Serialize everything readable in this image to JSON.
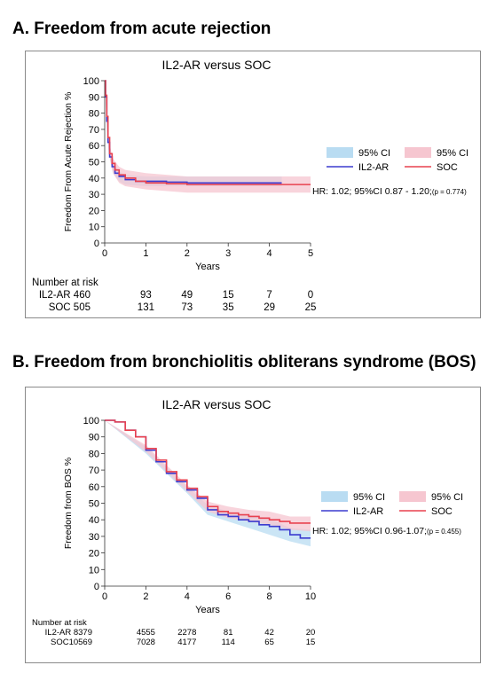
{
  "panels": {
    "a": {
      "title": "A. Freedom from acute rejection"
    },
    "b": {
      "title": "B. Freedom from bronchiolitis obliterans syndrome (BOS)"
    }
  },
  "colors": {
    "il2ar_line": "#3b3bcf",
    "soc_line": "#e8414f",
    "il2ar_ci": "#b9dcf2",
    "soc_ci": "#f6c6d0"
  },
  "chart_data": [
    {
      "type": "line",
      "title": "IL2-AR versus SOC",
      "xlabel": "Years",
      "ylabel": "Freedom From Acute Rejection %",
      "xlim": [
        0,
        5
      ],
      "ylim": [
        0,
        100
      ],
      "xticks": [
        "0",
        "1",
        "2",
        "3",
        "4",
        "5"
      ],
      "yticks": [
        "0",
        "10",
        "20",
        "30",
        "40",
        "50",
        "60",
        "70",
        "80",
        "90",
        "100"
      ],
      "grid": false,
      "legend": {
        "position": "right",
        "entries": [
          "95% CI",
          "95% CI",
          "IL2-AR",
          "SOC"
        ]
      },
      "annotation": {
        "main": "HR: 1.02; 95%CI 0.87 - 1.20;",
        "p": "(p = 0.774)"
      },
      "series": [
        {
          "name": "IL2-AR",
          "x": [
            0,
            0.02,
            0.05,
            0.08,
            0.12,
            0.18,
            0.25,
            0.35,
            0.5,
            0.75,
            1.0,
            1.5,
            2.0,
            3.0,
            4.0,
            4.3
          ],
          "y": [
            100,
            90,
            75,
            62,
            53,
            47,
            43,
            41,
            39,
            38,
            38,
            37.5,
            37,
            37,
            37,
            37
          ]
        },
        {
          "name": "SOC",
          "x": [
            0,
            0.02,
            0.05,
            0.08,
            0.12,
            0.18,
            0.25,
            0.35,
            0.5,
            0.75,
            1.0,
            1.5,
            2.0,
            3.0,
            4.0,
            5.0
          ],
          "y": [
            100,
            91,
            78,
            65,
            55,
            49,
            45,
            42,
            40,
            38,
            37,
            36.5,
            36,
            36,
            36,
            36
          ]
        }
      ],
      "ci_bands": [
        {
          "name": "95% CI",
          "x": [
            0,
            0.05,
            0.1,
            0.2,
            0.35,
            0.5,
            1.0,
            2.0,
            3.0,
            4.3
          ],
          "lower": [
            100,
            72,
            55,
            43,
            38,
            36,
            35,
            35,
            35,
            35
          ],
          "upper": [
            100,
            79,
            60,
            49,
            44,
            42,
            41,
            41,
            41,
            41
          ]
        },
        {
          "name": "95% CI",
          "x": [
            0,
            0.05,
            0.1,
            0.2,
            0.35,
            0.5,
            1.0,
            2.0,
            3.0,
            5.0
          ],
          "lower": [
            100,
            74,
            55,
            43,
            37,
            35,
            33,
            31,
            31,
            31
          ],
          "upper": [
            100,
            82,
            63,
            52,
            47,
            45,
            43,
            41,
            41,
            41
          ]
        }
      ],
      "risk_table": {
        "heading": "Number at risk",
        "rows": [
          {
            "label": "IL2-AR 460",
            "values": [
              "93",
              "49",
              "15",
              "7",
              "0"
            ]
          },
          {
            "label": "SOC 505",
            "values": [
              "131",
              "73",
              "35",
              "29",
              "25"
            ]
          }
        ]
      }
    },
    {
      "type": "line",
      "title": "IL2-AR versus SOC",
      "xlabel": "Years",
      "ylabel": "Freedom from BOS %",
      "xlim": [
        0,
        10
      ],
      "ylim": [
        0,
        100
      ],
      "xticks": [
        "0",
        "2",
        "4",
        "6",
        "8",
        "10"
      ],
      "yticks": [
        "0",
        "10",
        "20",
        "30",
        "40",
        "50",
        "60",
        "70",
        "80",
        "90",
        "100"
      ],
      "grid": false,
      "legend": {
        "position": "right",
        "entries": [
          "95% CI",
          "95% CI",
          "IL2-AR",
          "SOC"
        ]
      },
      "annotation": {
        "main": "HR: 1.02; 95%CI 0.96-1.07;",
        "p": "(p = 0.455)"
      },
      "series": [
        {
          "name": "IL2-AR",
          "x": [
            0,
            0.5,
            1,
            1.5,
            2,
            2.5,
            3,
            3.5,
            4,
            4.5,
            5,
            5.5,
            6,
            6.5,
            7,
            7.5,
            8,
            8.5,
            9,
            9.5,
            10
          ],
          "y": [
            100,
            99,
            94,
            90,
            82,
            75,
            68,
            63,
            58,
            53,
            46,
            43,
            42,
            40,
            39,
            37,
            36,
            34,
            31,
            29,
            29
          ]
        },
        {
          "name": "SOC",
          "x": [
            0,
            0.5,
            1,
            1.5,
            2,
            2.5,
            3,
            3.5,
            4,
            4.5,
            5,
            5.5,
            6,
            6.5,
            7,
            7.5,
            8,
            8.5,
            9,
            9.5,
            10
          ],
          "y": [
            100,
            99,
            94,
            90,
            83,
            76,
            69,
            64,
            59,
            54,
            48,
            45,
            44,
            43,
            42,
            41,
            40,
            39,
            38,
            38,
            38
          ]
        }
      ],
      "ci_bands": [
        {
          "name": "95% CI",
          "x": [
            0,
            2,
            4,
            5,
            6,
            7,
            8,
            9,
            10
          ],
          "lower": [
            100,
            80,
            56,
            43,
            39,
            35,
            31,
            27,
            24
          ],
          "upper": [
            100,
            84,
            60,
            49,
            45,
            43,
            41,
            35,
            34
          ]
        },
        {
          "name": "95% CI",
          "x": [
            0,
            2,
            4,
            5,
            6,
            7,
            8,
            9,
            10
          ],
          "lower": [
            100,
            81,
            57,
            45,
            41,
            39,
            37,
            34,
            33
          ],
          "upper": [
            100,
            85,
            61,
            51,
            48,
            46,
            45,
            42,
            42
          ]
        }
      ],
      "risk_table": {
        "heading": "Number at risk",
        "rows": [
          {
            "label": "IL2-AR 8379",
            "values": [
              "4555",
              "2278",
              "81",
              "42",
              "20"
            ]
          },
          {
            "label": "SOC10569",
            "values": [
              "7028",
              "4177",
              "114",
              "65",
              "15"
            ]
          }
        ]
      }
    }
  ]
}
